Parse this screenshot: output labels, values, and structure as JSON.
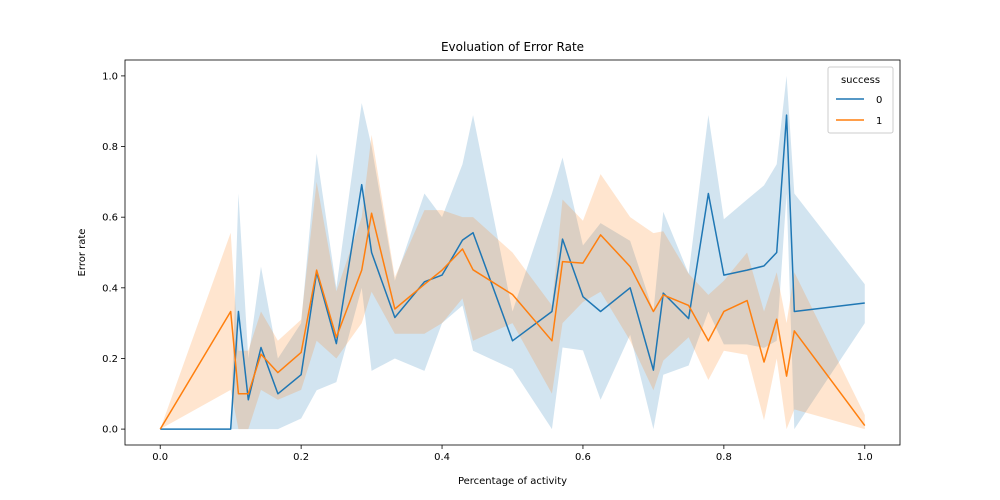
{
  "chart_data": {
    "type": "line",
    "title": "Evoluation of Error Rate",
    "xlabel": "Percentage of activity",
    "ylabel": "Error rate",
    "xlim": [
      -0.05,
      1.05
    ],
    "ylim": [
      -0.045,
      1.045
    ],
    "xticks": [
      0.0,
      0.2,
      0.4,
      0.6,
      0.8,
      1.0
    ],
    "xtick_labels": [
      "0.0",
      "0.2",
      "0.4",
      "0.6",
      "0.8",
      "1.0"
    ],
    "yticks": [
      0.0,
      0.2,
      0.4,
      0.6,
      0.8,
      1.0
    ],
    "ytick_labels": [
      "0.0",
      "0.2",
      "0.4",
      "0.6",
      "0.8",
      "1.0"
    ],
    "grid": false,
    "legend": {
      "title": "success",
      "placement": "top-right"
    },
    "series": [
      {
        "name": "0",
        "color": "#1f77b4",
        "x": [
          0.0,
          0.1,
          0.111,
          0.125,
          0.143,
          0.167,
          0.2,
          0.222,
          0.25,
          0.286,
          0.3,
          0.333,
          0.375,
          0.4,
          0.429,
          0.444,
          0.5,
          0.556,
          0.571,
          0.6,
          0.625,
          0.667,
          0.7,
          0.714,
          0.75,
          0.778,
          0.8,
          0.833,
          0.857,
          0.875,
          0.889,
          0.9,
          1.0
        ],
        "y": [
          0.0,
          0.0,
          0.333,
          0.083,
          0.231,
          0.1,
          0.154,
          0.444,
          0.242,
          0.692,
          0.5,
          0.316,
          0.417,
          0.436,
          0.535,
          0.556,
          0.25,
          0.333,
          0.538,
          0.375,
          0.333,
          0.4,
          0.167,
          0.385,
          0.313,
          0.667,
          0.436,
          0.45,
          0.462,
          0.5,
          0.889,
          0.333,
          0.357
        ],
        "lower": [
          0.0,
          0.0,
          0.0,
          0.0,
          0.0,
          0.0,
          0.03,
          0.11,
          0.133,
          0.4,
          0.165,
          0.2,
          0.165,
          0.3,
          0.35,
          0.222,
          0.17,
          0.0,
          0.231,
          0.223,
          0.083,
          0.267,
          0.0,
          0.154,
          0.18,
          0.333,
          0.24,
          0.24,
          0.23,
          0.25,
          0.667,
          0.0,
          0.3
        ],
        "upper": [
          0.0,
          0.0,
          0.667,
          0.2,
          0.46,
          0.2,
          0.3,
          0.78,
          0.4,
          0.923,
          0.8,
          0.42,
          0.667,
          0.6,
          0.75,
          0.889,
          0.333,
          0.667,
          0.769,
          0.52,
          0.583,
          0.533,
          0.333,
          0.615,
          0.44,
          0.889,
          0.594,
          0.65,
          0.69,
          0.75,
          1.0,
          0.667,
          0.41
        ]
      },
      {
        "name": "1",
        "color": "#ff7f0e",
        "x": [
          0.0,
          0.1,
          0.111,
          0.125,
          0.143,
          0.167,
          0.2,
          0.222,
          0.25,
          0.286,
          0.3,
          0.333,
          0.375,
          0.4,
          0.429,
          0.444,
          0.5,
          0.556,
          0.571,
          0.6,
          0.625,
          0.667,
          0.7,
          0.714,
          0.75,
          0.778,
          0.8,
          0.833,
          0.857,
          0.875,
          0.889,
          0.9,
          1.0
        ],
        "y": [
          0.0,
          0.333,
          0.1,
          0.1,
          0.212,
          0.16,
          0.217,
          0.45,
          0.26,
          0.45,
          0.611,
          0.34,
          0.41,
          0.45,
          0.51,
          0.451,
          0.381,
          0.25,
          0.474,
          0.47,
          0.55,
          0.46,
          0.333,
          0.38,
          0.35,
          0.25,
          0.333,
          0.364,
          0.19,
          0.311,
          0.15,
          0.278,
          0.01
        ],
        "lower": [
          0.0,
          0.111,
          0.0,
          0.0,
          0.111,
          0.083,
          0.111,
          0.25,
          0.2,
          0.3,
          0.389,
          0.27,
          0.27,
          0.3,
          0.37,
          0.25,
          0.3,
          0.1,
          0.3,
          0.36,
          0.389,
          0.25,
          0.11,
          0.194,
          0.26,
          0.139,
          0.222,
          0.21,
          0.025,
          0.2,
          0.0,
          0.056,
          0.0
        ],
        "upper": [
          0.0,
          0.556,
          0.222,
          0.222,
          0.333,
          0.25,
          0.31,
          0.7,
          0.39,
          0.6,
          0.833,
          0.43,
          0.62,
          0.62,
          0.6,
          0.6,
          0.5,
          0.35,
          0.65,
          0.59,
          0.722,
          0.6,
          0.555,
          0.56,
          0.44,
          0.38,
          0.42,
          0.5,
          0.333,
          0.444,
          0.3,
          0.444,
          0.04
        ]
      }
    ]
  }
}
